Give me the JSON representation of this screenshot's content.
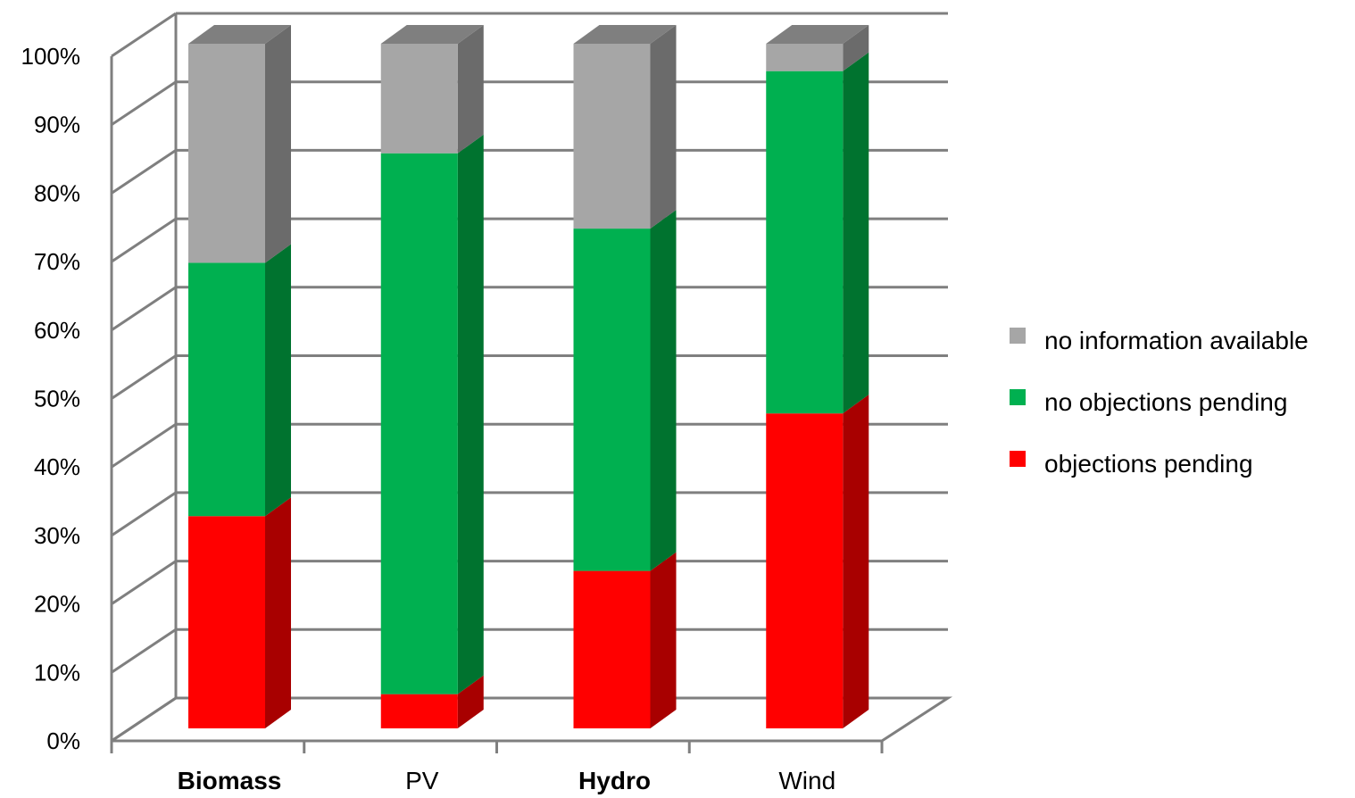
{
  "chart_data": {
    "type": "bar",
    "stacked": true,
    "three_d": true,
    "title": "",
    "xlabel": "",
    "ylabel": "",
    "ylim": [
      0,
      100
    ],
    "y_ticks": [
      "0%",
      "10%",
      "20%",
      "30%",
      "40%",
      "50%",
      "60%",
      "70%",
      "80%",
      "90%",
      "100%"
    ],
    "grid": true,
    "legend_position": "right",
    "categories": [
      "Biomass",
      "PV",
      "Hydro",
      "Wind"
    ],
    "bold_categories": [
      "Biomass",
      "Hydro"
    ],
    "series": [
      {
        "name": "objections pending",
        "values": [
          31,
          5,
          23,
          46
        ],
        "color": "#ff0000",
        "side_color": "#a80000",
        "top_color": "#cc0000"
      },
      {
        "name": "no objections pending",
        "values": [
          37,
          79,
          50,
          50
        ],
        "color": "#00b050",
        "side_color": "#00732f",
        "top_color": "#008c3c"
      },
      {
        "name": "no information available",
        "values": [
          32,
          16,
          27,
          4
        ],
        "color": "#a6a6a6",
        "side_color": "#6b6b6b",
        "top_color": "#7f7f7f"
      }
    ],
    "legend_order": [
      "no information available",
      "no objections pending",
      "objections pending"
    ],
    "grid_color": "#7f7f7f"
  }
}
